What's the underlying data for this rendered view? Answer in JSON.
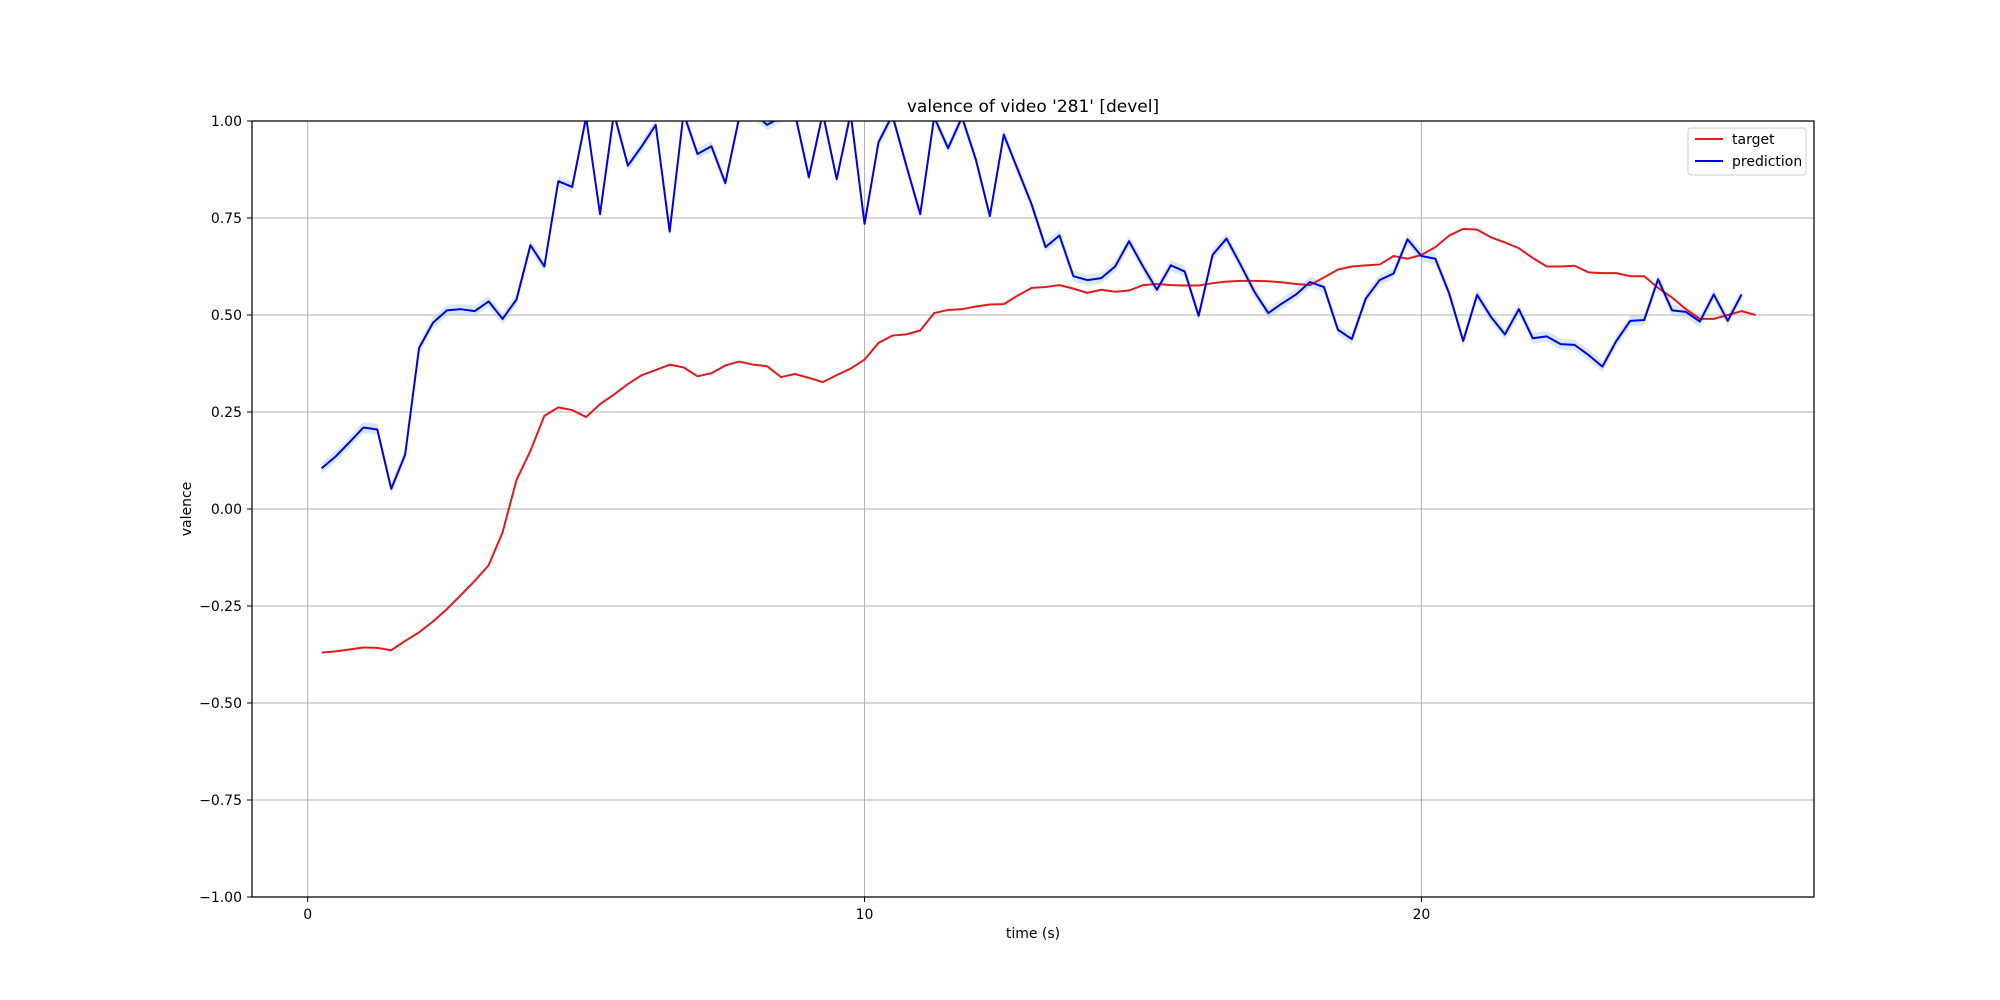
{
  "chart_data": {
    "type": "line",
    "title": "valence of video '281' [devel]",
    "xlabel": "time (s)",
    "ylabel": "valence",
    "xlim": [
      -1.0,
      27.05
    ],
    "ylim": [
      -1.0,
      1.0
    ],
    "xticks": [
      0,
      10,
      20
    ],
    "xtick_labels": [
      "0",
      "10",
      "20"
    ],
    "yticks": [
      1.0,
      0.75,
      0.5,
      0.25,
      0.0,
      -0.25,
      -0.5,
      -0.75,
      -1.0
    ],
    "ytick_labels": [
      "1.00",
      "0.75",
      "0.50",
      "0.25",
      "0.00",
      "−0.25",
      "−0.50",
      "−0.75",
      "−1.00"
    ],
    "grid": true,
    "legend_position": "top-right",
    "series": [
      {
        "name": "target",
        "color": "#e31a1c",
        "points": [
          [
            0.25,
            -0.37
          ],
          [
            0.5,
            -0.367
          ],
          [
            0.75,
            -0.362
          ],
          [
            1.0,
            -0.357
          ],
          [
            1.25,
            -0.358
          ],
          [
            1.5,
            -0.364
          ],
          [
            1.75,
            -0.34
          ],
          [
            2.0,
            -0.318
          ],
          [
            2.25,
            -0.29
          ],
          [
            2.5,
            -0.258
          ],
          [
            2.75,
            -0.222
          ],
          [
            3.0,
            -0.185
          ],
          [
            3.25,
            -0.145
          ],
          [
            3.5,
            -0.06
          ],
          [
            3.75,
            0.075
          ],
          [
            4.0,
            0.15
          ],
          [
            4.25,
            0.24
          ],
          [
            4.5,
            0.262
          ],
          [
            4.75,
            0.255
          ],
          [
            5.0,
            0.237
          ],
          [
            5.25,
            0.27
          ],
          [
            5.5,
            0.295
          ],
          [
            5.75,
            0.322
          ],
          [
            6.0,
            0.345
          ],
          [
            6.25,
            0.358
          ],
          [
            6.5,
            0.372
          ],
          [
            6.75,
            0.365
          ],
          [
            7.0,
            0.342
          ],
          [
            7.25,
            0.35
          ],
          [
            7.5,
            0.37
          ],
          [
            7.75,
            0.38
          ],
          [
            8.0,
            0.372
          ],
          [
            8.25,
            0.368
          ],
          [
            8.5,
            0.34
          ],
          [
            8.75,
            0.348
          ],
          [
            9.0,
            0.338
          ],
          [
            9.25,
            0.327
          ],
          [
            9.5,
            0.345
          ],
          [
            9.75,
            0.362
          ],
          [
            10.0,
            0.385
          ],
          [
            10.25,
            0.428
          ],
          [
            10.5,
            0.447
          ],
          [
            10.75,
            0.45
          ],
          [
            11.0,
            0.46
          ],
          [
            11.25,
            0.505
          ],
          [
            11.5,
            0.513
          ],
          [
            11.75,
            0.515
          ],
          [
            12.0,
            0.522
          ],
          [
            12.25,
            0.527
          ],
          [
            12.5,
            0.528
          ],
          [
            12.75,
            0.55
          ],
          [
            13.0,
            0.57
          ],
          [
            13.25,
            0.572
          ],
          [
            13.5,
            0.577
          ],
          [
            13.75,
            0.568
          ],
          [
            14.0,
            0.557
          ],
          [
            14.25,
            0.565
          ],
          [
            14.5,
            0.56
          ],
          [
            14.75,
            0.563
          ],
          [
            15.0,
            0.577
          ],
          [
            15.25,
            0.58
          ],
          [
            15.5,
            0.577
          ],
          [
            15.75,
            0.576
          ],
          [
            16.0,
            0.576
          ],
          [
            16.25,
            0.582
          ],
          [
            16.5,
            0.586
          ],
          [
            16.75,
            0.588
          ],
          [
            17.0,
            0.588
          ],
          [
            17.25,
            0.587
          ],
          [
            17.5,
            0.584
          ],
          [
            17.75,
            0.58
          ],
          [
            18.0,
            0.577
          ],
          [
            18.25,
            0.597
          ],
          [
            18.5,
            0.617
          ],
          [
            18.75,
            0.625
          ],
          [
            19.0,
            0.628
          ],
          [
            19.25,
            0.63
          ],
          [
            19.5,
            0.652
          ],
          [
            19.75,
            0.645
          ],
          [
            20.0,
            0.655
          ],
          [
            20.25,
            0.675
          ],
          [
            20.5,
            0.705
          ],
          [
            20.75,
            0.722
          ],
          [
            21.0,
            0.72
          ],
          [
            21.25,
            0.7
          ],
          [
            21.5,
            0.687
          ],
          [
            21.75,
            0.672
          ],
          [
            22.0,
            0.647
          ],
          [
            22.25,
            0.625
          ],
          [
            22.5,
            0.625
          ],
          [
            22.75,
            0.627
          ],
          [
            23.0,
            0.61
          ],
          [
            23.25,
            0.608
          ],
          [
            23.5,
            0.608
          ],
          [
            23.75,
            0.6
          ],
          [
            24.0,
            0.6
          ],
          [
            24.25,
            0.57
          ],
          [
            24.5,
            0.545
          ],
          [
            24.75,
            0.515
          ],
          [
            25.0,
            0.49
          ],
          [
            25.25,
            0.49
          ],
          [
            25.5,
            0.5
          ],
          [
            25.75,
            0.51
          ],
          [
            26.0,
            0.5
          ]
        ]
      },
      {
        "name": "prediction",
        "color": "#0000e6",
        "band_color": "#a6cee3",
        "points": [
          [
            0.25,
            0.105
          ],
          [
            0.5,
            0.135
          ],
          [
            0.75,
            0.172
          ],
          [
            1.0,
            0.21
          ],
          [
            1.25,
            0.205
          ],
          [
            1.5,
            0.052
          ],
          [
            1.75,
            0.14
          ],
          [
            2.0,
            0.415
          ],
          [
            2.25,
            0.48
          ],
          [
            2.5,
            0.512
          ],
          [
            2.75,
            0.515
          ],
          [
            3.0,
            0.51
          ],
          [
            3.25,
            0.535
          ],
          [
            3.5,
            0.49
          ],
          [
            3.75,
            0.54
          ],
          [
            4.0,
            0.68
          ],
          [
            4.25,
            0.625
          ],
          [
            4.5,
            0.845
          ],
          [
            4.75,
            0.83
          ],
          [
            5.0,
            1.01
          ],
          [
            5.25,
            0.76
          ],
          [
            5.5,
            1.02
          ],
          [
            5.75,
            0.885
          ],
          [
            6.0,
            0.935
          ],
          [
            6.25,
            0.99
          ],
          [
            6.5,
            0.715
          ],
          [
            6.75,
            1.02
          ],
          [
            7.0,
            0.915
          ],
          [
            7.25,
            0.935
          ],
          [
            7.5,
            0.84
          ],
          [
            7.75,
            1.01
          ],
          [
            8.0,
            1.02
          ],
          [
            8.25,
            0.99
          ],
          [
            8.5,
            1.01
          ],
          [
            8.75,
            1.02
          ],
          [
            9.0,
            0.855
          ],
          [
            9.25,
            1.02
          ],
          [
            9.5,
            0.85
          ],
          [
            9.75,
            1.02
          ],
          [
            10.0,
            0.735
          ],
          [
            10.25,
            0.945
          ],
          [
            10.5,
            1.015
          ],
          [
            10.75,
            0.885
          ],
          [
            11.0,
            0.76
          ],
          [
            11.25,
            1.01
          ],
          [
            11.5,
            0.93
          ],
          [
            11.75,
            1.01
          ],
          [
            12.0,
            0.9
          ],
          [
            12.25,
            0.755
          ],
          [
            12.5,
            0.965
          ],
          [
            12.75,
            0.875
          ],
          [
            13.0,
            0.785
          ],
          [
            13.25,
            0.675
          ],
          [
            13.5,
            0.705
          ],
          [
            13.75,
            0.6
          ],
          [
            14.0,
            0.59
          ],
          [
            14.25,
            0.595
          ],
          [
            14.5,
            0.625
          ],
          [
            14.75,
            0.69
          ],
          [
            15.0,
            0.625
          ],
          [
            15.25,
            0.565
          ],
          [
            15.5,
            0.628
          ],
          [
            15.75,
            0.612
          ],
          [
            16.0,
            0.498
          ],
          [
            16.25,
            0.655
          ],
          [
            16.5,
            0.697
          ],
          [
            16.75,
            0.63
          ],
          [
            17.0,
            0.56
          ],
          [
            17.25,
            0.505
          ],
          [
            17.5,
            0.53
          ],
          [
            17.75,
            0.553
          ],
          [
            18.0,
            0.585
          ],
          [
            18.25,
            0.572
          ],
          [
            18.5,
            0.462
          ],
          [
            18.75,
            0.438
          ],
          [
            19.0,
            0.542
          ],
          [
            19.25,
            0.59
          ],
          [
            19.5,
            0.607
          ],
          [
            19.75,
            0.695
          ],
          [
            20.0,
            0.652
          ],
          [
            20.25,
            0.645
          ],
          [
            20.5,
            0.555
          ],
          [
            20.75,
            0.433
          ],
          [
            21.0,
            0.552
          ],
          [
            21.25,
            0.495
          ],
          [
            21.5,
            0.45
          ],
          [
            21.75,
            0.515
          ],
          [
            22.0,
            0.44
          ],
          [
            22.25,
            0.445
          ],
          [
            22.5,
            0.425
          ],
          [
            22.75,
            0.423
          ],
          [
            23.0,
            0.397
          ],
          [
            23.25,
            0.367
          ],
          [
            23.5,
            0.433
          ],
          [
            23.75,
            0.485
          ],
          [
            24.0,
            0.487
          ],
          [
            24.25,
            0.592
          ],
          [
            24.5,
            0.512
          ],
          [
            24.75,
            0.508
          ],
          [
            25.0,
            0.483
          ],
          [
            25.25,
            0.553
          ],
          [
            25.5,
            0.485
          ],
          [
            25.75,
            0.553
          ]
        ]
      }
    ]
  }
}
